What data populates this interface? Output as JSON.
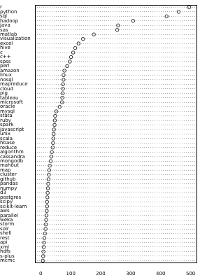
{
  "chart_data": {
    "type": "dot",
    "orientation": "horizontal",
    "grid": true,
    "marker": "circle",
    "color": "#000000",
    "categories": [
      "r",
      "python",
      "sql",
      "hadoop",
      "java",
      "sas",
      "matlab",
      "visualization",
      "excel",
      "hive",
      "c",
      "c++",
      "spss",
      "perl",
      "amazon",
      "linux",
      "nosql",
      "mapreduce",
      "cloud",
      "pig",
      "tableau",
      "microsoft",
      "oracle",
      "mysql",
      "stata",
      "ruby",
      "spark",
      "javascript",
      "unix",
      "scala",
      "hbase",
      "reduce",
      "algorithm",
      "cassandra",
      "mongodb",
      "mahout",
      "map",
      "cluster",
      "github",
      "pandas",
      "numpy",
      "d3",
      "postgres",
      "scipy",
      "scikit-learn",
      "aws",
      "parallel",
      "weka",
      "storm",
      "solr",
      "shell",
      "rest",
      "api",
      "xml",
      "hdfs",
      "s-plus",
      "mcmc"
    ],
    "values": [
      495,
      460,
      420,
      308,
      258,
      255,
      177,
      141,
      126,
      115,
      108,
      101,
      97,
      88,
      79,
      76,
      76,
      74,
      74,
      73,
      72,
      71,
      63,
      52,
      48,
      47,
      46,
      44,
      43,
      42,
      41,
      40,
      37,
      35,
      33,
      30,
      28,
      27,
      26,
      25,
      24,
      23,
      22,
      21,
      21,
      20,
      19,
      18,
      17,
      16,
      14,
      12,
      11,
      10,
      9,
      8,
      7
    ],
    "xlim": [
      -20,
      520
    ],
    "xticks": [
      0,
      100,
      200,
      300,
      400,
      500
    ]
  }
}
